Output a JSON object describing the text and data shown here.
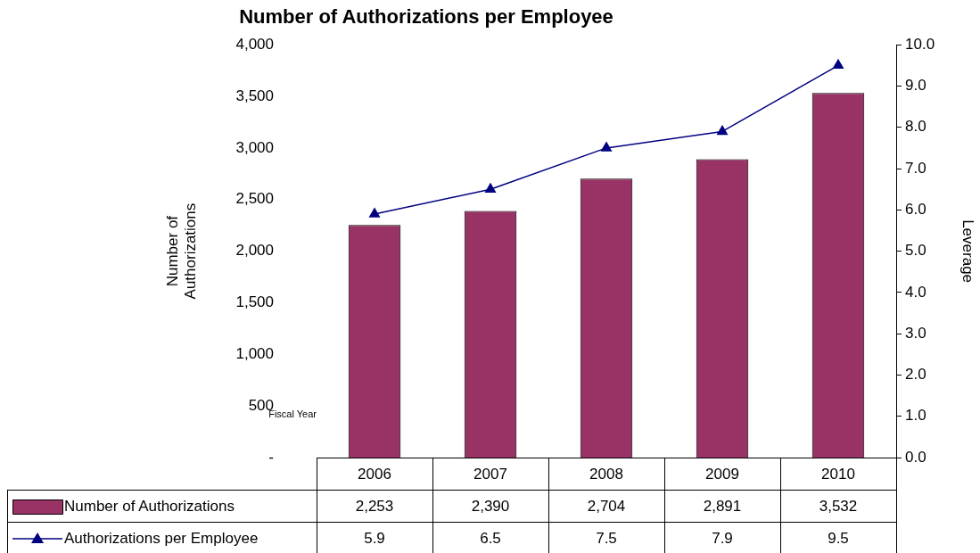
{
  "chart_data": {
    "type": "bar",
    "title": "Number of Authorizations per Employee",
    "xlabel": "Fiscal Year",
    "ylabel": "Number of\nAuthorizations",
    "y2label": "Leverage",
    "categories": [
      "2006",
      "2007",
      "2008",
      "2009",
      "2010"
    ],
    "series": [
      {
        "name": "Number of Authorizations",
        "color": "#993366",
        "values": [
          2253,
          2390,
          2704,
          2891,
          3532
        ],
        "value_labels": [
          "2,253",
          "2,390",
          "2,704",
          "2,891",
          "3,532"
        ]
      },
      {
        "name": "Authorizations per Employee",
        "type": "line",
        "color": "#000080",
        "axis": "y2",
        "marker": "triangle",
        "values": [
          5.9,
          6.5,
          7.5,
          7.9,
          9.5
        ],
        "value_labels": [
          "5.9",
          "6.5",
          "7.5",
          "7.9",
          "9.5"
        ]
      }
    ],
    "ylim": [
      0,
      4000
    ],
    "yticks": [
      {
        "value": 0,
        "label": "-"
      },
      500,
      {
        "value": 1000,
        "label": "1,000"
      },
      {
        "value": 1500,
        "label": "1,500"
      },
      {
        "value": 2000,
        "label": "2,000"
      },
      {
        "value": 2500,
        "label": "2,500"
      },
      {
        "value": 3000,
        "label": "3,000"
      },
      {
        "value": 3500,
        "label": "3,500"
      },
      {
        "value": 4000,
        "label": "4,000"
      }
    ],
    "y2lim": [
      0,
      10
    ],
    "y2ticks": [
      {
        "value": 0,
        "label": "0.0"
      },
      {
        "value": 1,
        "label": "1.0"
      },
      {
        "value": 2,
        "label": "2.0"
      },
      {
        "value": 3,
        "label": "3.0"
      },
      {
        "value": 4,
        "label": "4.0"
      },
      {
        "value": 5,
        "label": "5.0"
      },
      {
        "value": 6,
        "label": "6.0"
      },
      {
        "value": 7,
        "label": "7.0"
      },
      {
        "value": 8,
        "label": "8.0"
      },
      {
        "value": 9,
        "label": "9.0"
      },
      {
        "value": 10,
        "label": "10.0"
      }
    ],
    "legend": "bottom"
  }
}
